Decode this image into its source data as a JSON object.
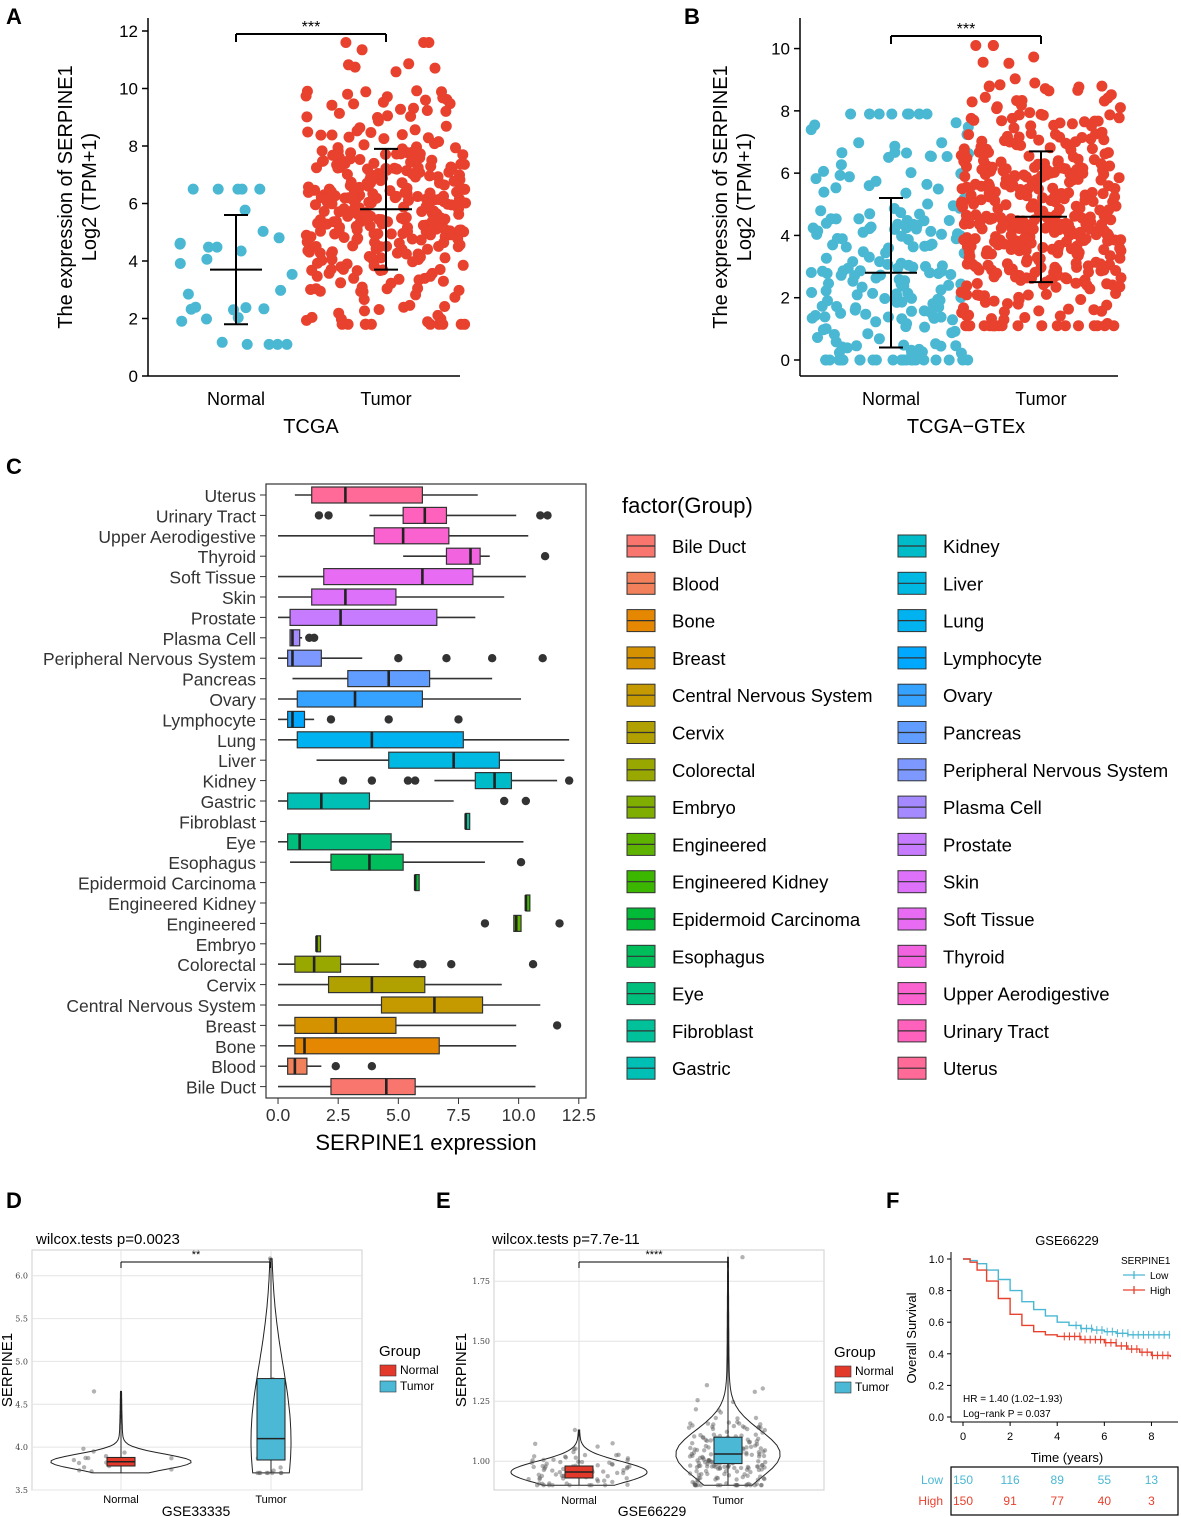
{
  "colors": {
    "normal_blue": "#4ab8d3",
    "tumor_red": "#e8412e",
    "box_red": "#e3392a",
    "box_blue": "#4bb8d6",
    "surv_low": "#4ab8d3",
    "surv_high": "#e8412e"
  },
  "chart_data": [
    {
      "id": "A",
      "panel_letter": "A",
      "type": "scatter",
      "title": "",
      "xlabel": "TCGA",
      "ylabel_line1": "The expression of SERPINE1",
      "ylabel_line2": "Log2 (TPM+1)",
      "ylim": [
        0,
        12
      ],
      "yticks": [
        "0",
        "2",
        "4",
        "6",
        "8",
        "10",
        "12"
      ],
      "categories": [
        "Normal",
        "Tumor"
      ],
      "significance": "***",
      "groups": [
        {
          "name": "Normal",
          "mean": 3.7,
          "sd_low": 1.8,
          "sd_high": 5.6,
          "n": 31,
          "min": 1.1,
          "max": 6.5,
          "color": "#4ab8d3"
        },
        {
          "name": "Tumor",
          "mean": 5.8,
          "sd_low": 3.7,
          "sd_high": 7.9,
          "n": 330,
          "min": 1.8,
          "max": 11.6,
          "color": "#e8412e"
        }
      ]
    },
    {
      "id": "B",
      "panel_letter": "B",
      "type": "scatter",
      "title": "",
      "xlabel": "TCGA−GTEx",
      "ylabel_line1": "The expression of SERPINE1",
      "ylabel_line2": "Log2 (TPM+1)",
      "ylim": [
        0,
        10.5
      ],
      "yticks": [
        "0",
        "2",
        "4",
        "6",
        "8",
        "10"
      ],
      "categories": [
        "Normal",
        "Tumor"
      ],
      "significance": "***",
      "groups": [
        {
          "name": "Normal",
          "mean": 2.8,
          "sd_low": 0.4,
          "sd_high": 5.2,
          "n": 210,
          "min": 0.0,
          "max": 7.9,
          "color": "#4ab8d3"
        },
        {
          "name": "Tumor",
          "mean": 4.6,
          "sd_low": 2.5,
          "sd_high": 6.7,
          "n": 420,
          "min": 1.1,
          "max": 10.1,
          "color": "#e8412e"
        }
      ]
    },
    {
      "id": "C",
      "panel_letter": "C",
      "type": "boxplot",
      "xlabel": "SERPINE1 expression",
      "xlim": [
        -0.5,
        12.8
      ],
      "xticks": [
        "0.0",
        "2.5",
        "5.0",
        "7.5",
        "10.0",
        "12.5"
      ],
      "legend_title": "factor(Group)",
      "categories": [
        "Bile Duct",
        "Blood",
        "Bone",
        "Breast",
        "Central Nervous System",
        "Cervix",
        "Colorectal",
        "Embryo",
        "Engineered",
        "Engineered Kidney",
        "Epidermoid Carcinoma",
        "Esophagus",
        "Eye",
        "Fibroblast",
        "Gastric",
        "Kidney",
        "Liver",
        "Lung",
        "Lymphocyte",
        "Ovary",
        "Pancreas",
        "Peripheral Nervous System",
        "Plasma Cell",
        "Prostate",
        "Skin",
        "Soft Tissue",
        "Thyroid",
        "Upper Aerodigestive",
        "Urinary Tract",
        "Uterus"
      ],
      "colors": [
        "#f8766d",
        "#f2805a",
        "#e58700",
        "#d49200",
        "#c49a00",
        "#b0a100",
        "#99a800",
        "#7fae00",
        "#5eb300",
        "#3cb700",
        "#00ba38",
        "#00bd5c",
        "#00bf7d",
        "#00c19a",
        "#00c0b5",
        "#00bcc8",
        "#00b9e3",
        "#00b3f0",
        "#00a9ff",
        "#35a2ff",
        "#619cff",
        "#7d98ff",
        "#a58aff",
        "#c77cff",
        "#dd71fa",
        "#e76bf3",
        "#f263e0",
        "#fa62d0",
        "#ff62bc",
        "#ff6a98"
      ],
      "boxes": [
        {
          "min": 0.0,
          "q1": 2.2,
          "median": 4.5,
          "q3": 5.7,
          "max": 10.7,
          "outliers": []
        },
        {
          "min": 0.0,
          "q1": 0.4,
          "median": 0.7,
          "q3": 1.2,
          "max": 1.8,
          "outliers": [
            2.4,
            3.9
          ]
        },
        {
          "min": 0.0,
          "q1": 0.7,
          "median": 1.1,
          "q3": 6.7,
          "max": 9.9,
          "outliers": []
        },
        {
          "min": 0.0,
          "q1": 0.7,
          "median": 2.4,
          "q3": 4.9,
          "max": 9.9,
          "outliers": [
            11.6
          ]
        },
        {
          "min": 0.0,
          "q1": 4.3,
          "median": 6.5,
          "q3": 8.5,
          "max": 10.9,
          "outliers": []
        },
        {
          "min": 0.0,
          "q1": 2.1,
          "median": 3.9,
          "q3": 6.1,
          "max": 9.3,
          "outliers": []
        },
        {
          "min": 0.0,
          "q1": 0.7,
          "median": 1.5,
          "q3": 2.6,
          "max": 4.2,
          "outliers": [
            5.8,
            6.0,
            7.2,
            10.6
          ]
        },
        {
          "min": 1.6,
          "q1": 1.6,
          "median": 1.6,
          "q3": 1.6,
          "max": 1.6,
          "outliers": []
        },
        {
          "min": 9.8,
          "q1": 9.8,
          "median": 9.9,
          "q3": 10.1,
          "max": 10.1,
          "outliers": [
            8.6,
            11.7
          ]
        },
        {
          "min": 10.3,
          "q1": 10.3,
          "median": 10.3,
          "q3": 10.3,
          "max": 10.3,
          "outliers": []
        },
        {
          "min": 5.7,
          "q1": 5.7,
          "median": 5.7,
          "q3": 5.7,
          "max": 5.7,
          "outliers": []
        },
        {
          "min": 0.5,
          "q1": 2.2,
          "median": 3.8,
          "q3": 5.2,
          "max": 8.6,
          "outliers": [
            10.1
          ]
        },
        {
          "min": 0.0,
          "q1": 0.4,
          "median": 0.9,
          "q3": 4.7,
          "max": 10.2,
          "outliers": []
        },
        {
          "min": 7.8,
          "q1": 7.8,
          "median": 7.8,
          "q3": 7.8,
          "max": 7.8,
          "outliers": []
        },
        {
          "min": 0.0,
          "q1": 0.4,
          "median": 1.8,
          "q3": 3.8,
          "max": 7.3,
          "outliers": [
            9.4,
            10.3
          ]
        },
        {
          "min": 6.5,
          "q1": 8.2,
          "median": 9.0,
          "q3": 9.7,
          "max": 11.6,
          "outliers": [
            2.7,
            3.9,
            5.4,
            5.7,
            12.1
          ]
        },
        {
          "min": 1.6,
          "q1": 4.6,
          "median": 7.3,
          "q3": 9.2,
          "max": 11.9,
          "outliers": []
        },
        {
          "min": 0.0,
          "q1": 0.8,
          "median": 3.9,
          "q3": 7.7,
          "max": 12.1,
          "outliers": []
        },
        {
          "min": 0.0,
          "q1": 0.4,
          "median": 0.6,
          "q3": 1.1,
          "max": 1.5,
          "outliers": [
            2.2,
            4.6,
            7.5
          ]
        },
        {
          "min": 0.0,
          "q1": 0.8,
          "median": 3.2,
          "q3": 6.0,
          "max": 10.1,
          "outliers": []
        },
        {
          "min": 0.6,
          "q1": 2.9,
          "median": 4.6,
          "q3": 6.3,
          "max": 8.9,
          "outliers": []
        },
        {
          "min": 0.0,
          "q1": 0.4,
          "median": 0.6,
          "q3": 1.8,
          "max": 3.5,
          "outliers": [
            5.0,
            7.0,
            8.9,
            11.0
          ]
        },
        {
          "min": 0.5,
          "q1": 0.5,
          "median": 0.6,
          "q3": 0.9,
          "max": 1.0,
          "outliers": [
            1.3,
            1.5
          ]
        },
        {
          "min": 0.0,
          "q1": 0.5,
          "median": 2.6,
          "q3": 6.6,
          "max": 8.2,
          "outliers": []
        },
        {
          "min": 0.0,
          "q1": 1.4,
          "median": 2.8,
          "q3": 4.9,
          "max": 9.4,
          "outliers": []
        },
        {
          "min": 0.0,
          "q1": 1.9,
          "median": 6.0,
          "q3": 8.1,
          "max": 10.3,
          "outliers": []
        },
        {
          "min": 5.2,
          "q1": 7.0,
          "median": 8.0,
          "q3": 8.4,
          "max": 8.8,
          "outliers": [
            11.1
          ]
        },
        {
          "min": 0.0,
          "q1": 4.0,
          "median": 5.2,
          "q3": 7.1,
          "max": 10.4,
          "outliers": []
        },
        {
          "min": 3.8,
          "q1": 5.2,
          "median": 6.1,
          "q3": 7.0,
          "max": 9.9,
          "outliers": [
            1.7,
            2.1,
            10.9,
            11.2
          ]
        },
        {
          "min": 0.7,
          "q1": 1.4,
          "median": 2.8,
          "q3": 6.0,
          "max": 8.3,
          "outliers": []
        }
      ]
    },
    {
      "id": "D",
      "panel_letter": "D",
      "type": "violin",
      "title": "wilcox.tests p=0.0023",
      "xlabel": "GSE33335",
      "ylabel": "SERPINE1",
      "ylim": [
        3.5,
        6.3
      ],
      "yticks": [
        "3.5",
        "4.0",
        "4.5",
        "5.0",
        "5.5",
        "6.0"
      ],
      "categories": [
        "Normal",
        "Tumor"
      ],
      "significance": "**",
      "legend_title": "Group",
      "legend_items": [
        "Normal",
        "Tumor"
      ],
      "groups": [
        {
          "name": "Normal",
          "q1": 3.78,
          "median": 3.83,
          "q3": 3.88,
          "min": 3.7,
          "max": 4.65,
          "color": "#e3392a"
        },
        {
          "name": "Tumor",
          "q1": 3.85,
          "median": 4.1,
          "q3": 4.8,
          "min": 3.7,
          "max": 6.2,
          "color": "#4bb8d6"
        }
      ]
    },
    {
      "id": "E",
      "panel_letter": "E",
      "type": "violin",
      "title": "wilcox.tests p=7.7e-11",
      "xlabel": "GSE66229",
      "ylabel": "SERPINE1",
      "ylim": [
        0.88,
        1.88
      ],
      "yticks": [
        "1.00",
        "1.25",
        "1.50",
        "1.75"
      ],
      "categories": [
        "Normal",
        "Tumor"
      ],
      "significance": "****",
      "legend_title": "Group",
      "legend_items": [
        "Normal",
        "Tumor"
      ],
      "groups": [
        {
          "name": "Normal",
          "q1": 0.93,
          "median": 0.955,
          "q3": 0.98,
          "min": 0.9,
          "max": 1.13,
          "color": "#e3392a"
        },
        {
          "name": "Tumor",
          "q1": 0.99,
          "median": 1.03,
          "q3": 1.1,
          "min": 0.9,
          "max": 1.85,
          "color": "#4bb8d6"
        }
      ]
    },
    {
      "id": "F",
      "panel_letter": "F",
      "type": "line",
      "title": "GSE66229",
      "xlabel": "Time (years)",
      "ylabel": "Overall Survival",
      "xlim": [
        0,
        9
      ],
      "ylim": [
        0,
        1
      ],
      "xticks": [
        "0",
        "2",
        "4",
        "6",
        "8"
      ],
      "yticks": [
        "0.0",
        "0.2",
        "0.4",
        "0.6",
        "0.8",
        "1.0"
      ],
      "legend_title": "SERPINE1",
      "hr_text": "HR = 1.40 (1.02−1.93)",
      "logrank_text": "Log−rank P = 0.037",
      "series": [
        {
          "name": "Low",
          "color": "#4ab8d3",
          "x": [
            0,
            0.3,
            0.6,
            1.0,
            1.5,
            2.0,
            2.5,
            3.0,
            3.5,
            4.0,
            4.5,
            5.0,
            5.5,
            6.0,
            6.5,
            7.0,
            8.8
          ],
          "y": [
            1.0,
            0.99,
            0.97,
            0.93,
            0.87,
            0.8,
            0.73,
            0.68,
            0.64,
            0.6,
            0.58,
            0.56,
            0.55,
            0.54,
            0.53,
            0.52,
            0.52
          ]
        },
        {
          "name": "High",
          "color": "#e8412e",
          "x": [
            0,
            0.3,
            0.6,
            1.0,
            1.5,
            2.0,
            2.5,
            3.0,
            3.5,
            4.0,
            5.0,
            6.0,
            6.5,
            7.0,
            7.5,
            8.0,
            8.8
          ],
          "y": [
            1.0,
            0.98,
            0.93,
            0.86,
            0.75,
            0.65,
            0.58,
            0.54,
            0.52,
            0.51,
            0.49,
            0.47,
            0.45,
            0.43,
            0.41,
            0.39,
            0.38
          ]
        }
      ],
      "risk_table": {
        "rows": [
          {
            "name": "Low",
            "values": [
              "150",
              "116",
              "89",
              "55",
              "13"
            ]
          },
          {
            "name": "High",
            "values": [
              "150",
              "91",
              "77",
              "40",
              "3"
            ]
          }
        ]
      }
    }
  ]
}
